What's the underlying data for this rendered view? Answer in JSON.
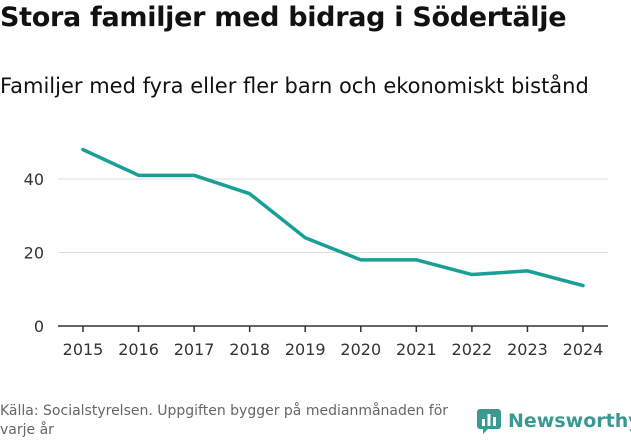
{
  "header": {
    "title": "Stora familjer med bidrag i Södertälje",
    "subtitle": "Familjer med fyra eller fler barn och ekonomiskt bistånd"
  },
  "footer": {
    "source": "Källa: Socialstyrelsen. Uppgiften bygger på medianmånaden för varje år",
    "brand": "Newsworthy",
    "brand_icon": "newsworthy-logo-icon"
  },
  "colors": {
    "line": "#19a096",
    "brand": "#3a9a93",
    "grid": "#dddddd"
  },
  "chart_data": {
    "type": "line",
    "title": "Stora familjer med bidrag i Södertälje",
    "subtitle": "Familjer med fyra eller fler barn och ekonomiskt bistånd",
    "xlabel": "",
    "ylabel": "",
    "x": [
      2015,
      2016,
      2017,
      2018,
      2019,
      2020,
      2021,
      2022,
      2023,
      2024
    ],
    "series": [
      {
        "name": "Familjer",
        "values": [
          48,
          41,
          41,
          36,
          24,
          18,
          18,
          14,
          15,
          11
        ]
      }
    ],
    "ylim": [
      0,
      50
    ],
    "yticks": [
      0,
      20,
      40
    ],
    "grid": true,
    "legend": "none"
  }
}
